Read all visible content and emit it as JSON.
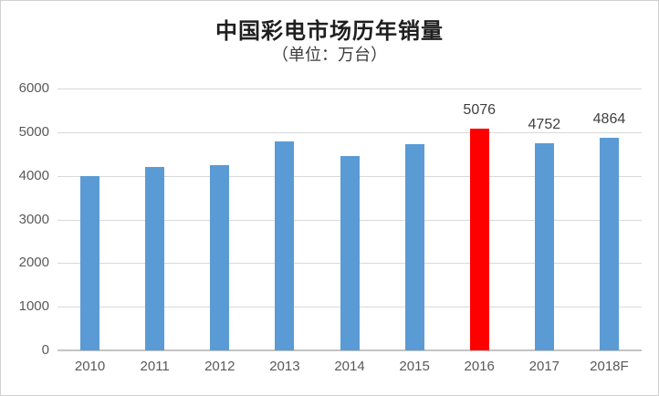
{
  "page": {
    "background": "#ffffff",
    "border_color": "#d0d0d0"
  },
  "chart_data": {
    "type": "bar",
    "title": "中国彩电市场历年销量",
    "subtitle": "（单位：万台）",
    "categories": [
      "2010",
      "2011",
      "2012",
      "2013",
      "2014",
      "2015",
      "2016",
      "2017",
      "2018F"
    ],
    "values": [
      4000,
      4200,
      4250,
      4790,
      4450,
      4720,
      5076,
      4752,
      4864
    ],
    "value_labels": [
      "",
      "",
      "",
      "",
      "",
      "",
      "5076",
      "4752",
      "4864"
    ],
    "highlight_index": 6,
    "bar_color": "#5b9bd5",
    "highlight_color": "#fe0000",
    "xlabel": "",
    "ylabel": "",
    "ylim": [
      0,
      6000
    ],
    "ytick_step": 1000,
    "yticks": [
      "0",
      "1000",
      "2000",
      "3000",
      "4000",
      "5000",
      "6000"
    ],
    "grid": true,
    "legend_position": "none",
    "colors": {
      "gridline": "#d9d9d9",
      "axis_line": "#c3c3c3",
      "tick_label": "#595959",
      "data_label": "#404040",
      "title": "#1f1f1f"
    }
  }
}
